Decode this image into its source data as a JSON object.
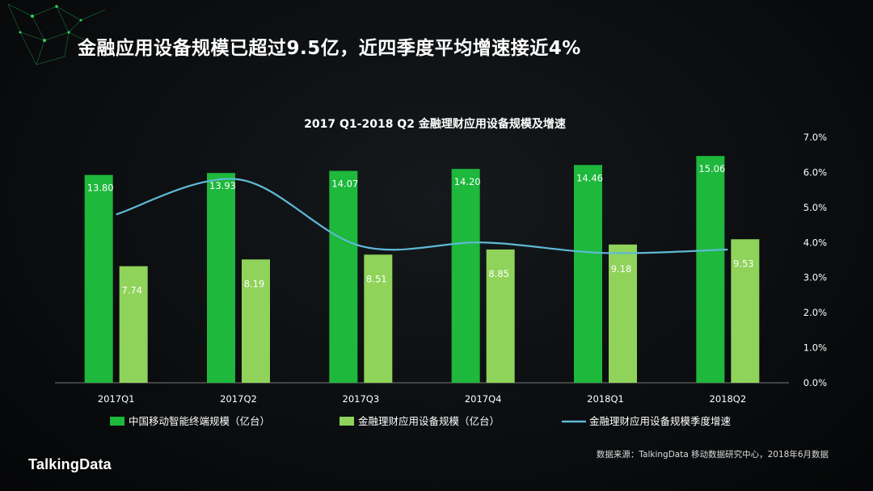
{
  "headline": "金融应用设备规模已超过9.5亿，近四季度平均增速接近4%",
  "source": "数据来源：TalkingData 移动数据研究中心，2018年6月数据",
  "brand": "TalkingData",
  "colors": {
    "bar_terminal": "#1db83c",
    "bar_finance": "#8fd35a",
    "growth_line": "#5fb9d6",
    "accent": "#21c24a"
  },
  "chart_data": {
    "type": "bar",
    "title": "2017 Q1-2018 Q2 金融理财应用设备规模及增速",
    "categories": [
      "2017Q1",
      "2017Q2",
      "2017Q3",
      "2017Q4",
      "2018Q1",
      "2018Q2"
    ],
    "series": [
      {
        "name": "中国移动智能终端规模（亿台）",
        "type": "bar",
        "axis": "left",
        "values": [
          13.8,
          13.93,
          14.07,
          14.2,
          14.46,
          15.06
        ],
        "labels": [
          "13.80",
          "13.93",
          "14.07",
          "14.20",
          "14.46",
          "15.06"
        ]
      },
      {
        "name": "金融理财应用设备规模（亿台）",
        "type": "bar",
        "axis": "left",
        "values": [
          7.74,
          8.19,
          8.51,
          8.85,
          9.18,
          9.53
        ],
        "labels": [
          "7.74",
          "8.19",
          "8.51",
          "8.85",
          "9.18",
          "9.53"
        ]
      },
      {
        "name": "金融理财应用设备规模季度增速",
        "type": "line",
        "axis": "right",
        "values": [
          4.8,
          5.8,
          3.9,
          4.0,
          3.7,
          3.8
        ]
      }
    ],
    "y_left_range": [
      0,
      16.3
    ],
    "y_right_range": [
      0,
      7.0
    ],
    "y_right_ticks": [
      "0.0%",
      "1.0%",
      "2.0%",
      "3.0%",
      "4.0%",
      "5.0%",
      "6.0%",
      "7.0%"
    ],
    "legend_position": "bottom",
    "grid": false
  }
}
